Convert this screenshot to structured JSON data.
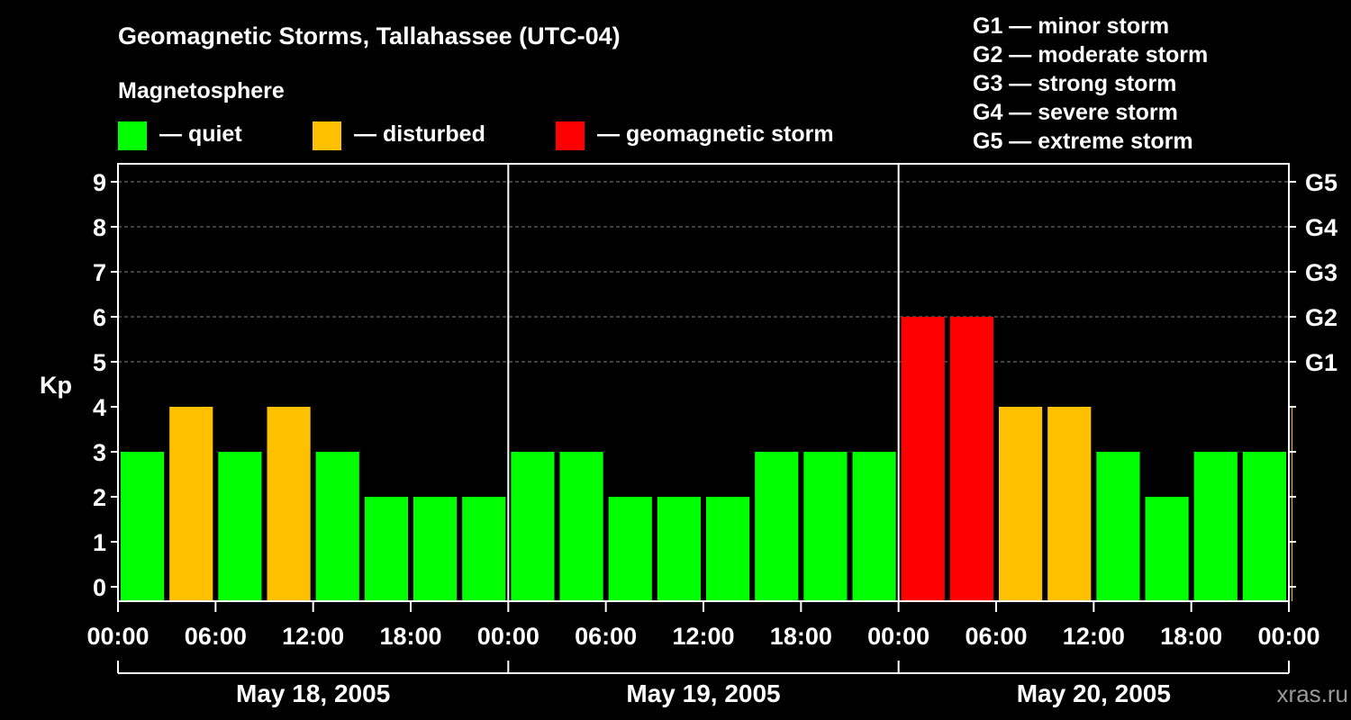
{
  "colors": {
    "quiet": "#00ff00",
    "disturbed": "#ffc000",
    "storm": "#ff0000",
    "background": "#000000",
    "axis": "#ffffff",
    "grid": "#808080"
  },
  "header": {
    "title": "Geomagnetic Storms, Tallahassee (UTC-04)",
    "magnetosphere_label": "Magnetosphere",
    "legend": [
      {
        "key": "quiet",
        "label": "— quiet"
      },
      {
        "key": "disturbed",
        "label": "— disturbed"
      },
      {
        "key": "storm",
        "label": "— geomagnetic storm"
      }
    ],
    "storm_scale": [
      "G1 — minor storm",
      "G2 — moderate storm",
      "G3 — strong storm",
      "G4 — severe storm",
      "G5 — extreme storm"
    ]
  },
  "credit": "xras.ru",
  "chart_data": {
    "type": "bar",
    "title": "Geomagnetic Storms, Tallahassee (UTC-04)",
    "ylabel": "Kp",
    "ylim": [
      0,
      9
    ],
    "y_ticks": [
      "0",
      "1",
      "2",
      "3",
      "4",
      "5",
      "6",
      "7",
      "8",
      "9"
    ],
    "right_axis": [
      {
        "kp": 5,
        "label": "G1"
      },
      {
        "kp": 6,
        "label": "G2"
      },
      {
        "kp": 7,
        "label": "G3"
      },
      {
        "kp": 8,
        "label": "G4"
      },
      {
        "kp": 9,
        "label": "G5"
      }
    ],
    "grid_lines_at": [
      5,
      6,
      7,
      8,
      9
    ],
    "bar_interval_hours": 3,
    "x_tick_labels": [
      "00:00",
      "06:00",
      "12:00",
      "18:00",
      "00:00",
      "06:00",
      "12:00",
      "18:00",
      "00:00",
      "06:00",
      "12:00",
      "18:00",
      "00:00"
    ],
    "days": [
      "May 18, 2005",
      "May 19, 2005",
      "May 20, 2005"
    ],
    "values": [
      3,
      4,
      3,
      4,
      3,
      2,
      2,
      2,
      3,
      3,
      2,
      2,
      2,
      3,
      3,
      3,
      6,
      6,
      4,
      4,
      3,
      2,
      3,
      3,
      4
    ],
    "last_bar_partial": true,
    "color_rule": "Kp < 4 quiet, Kp = 4 disturbed, Kp >= 5 geomagnetic storm"
  }
}
